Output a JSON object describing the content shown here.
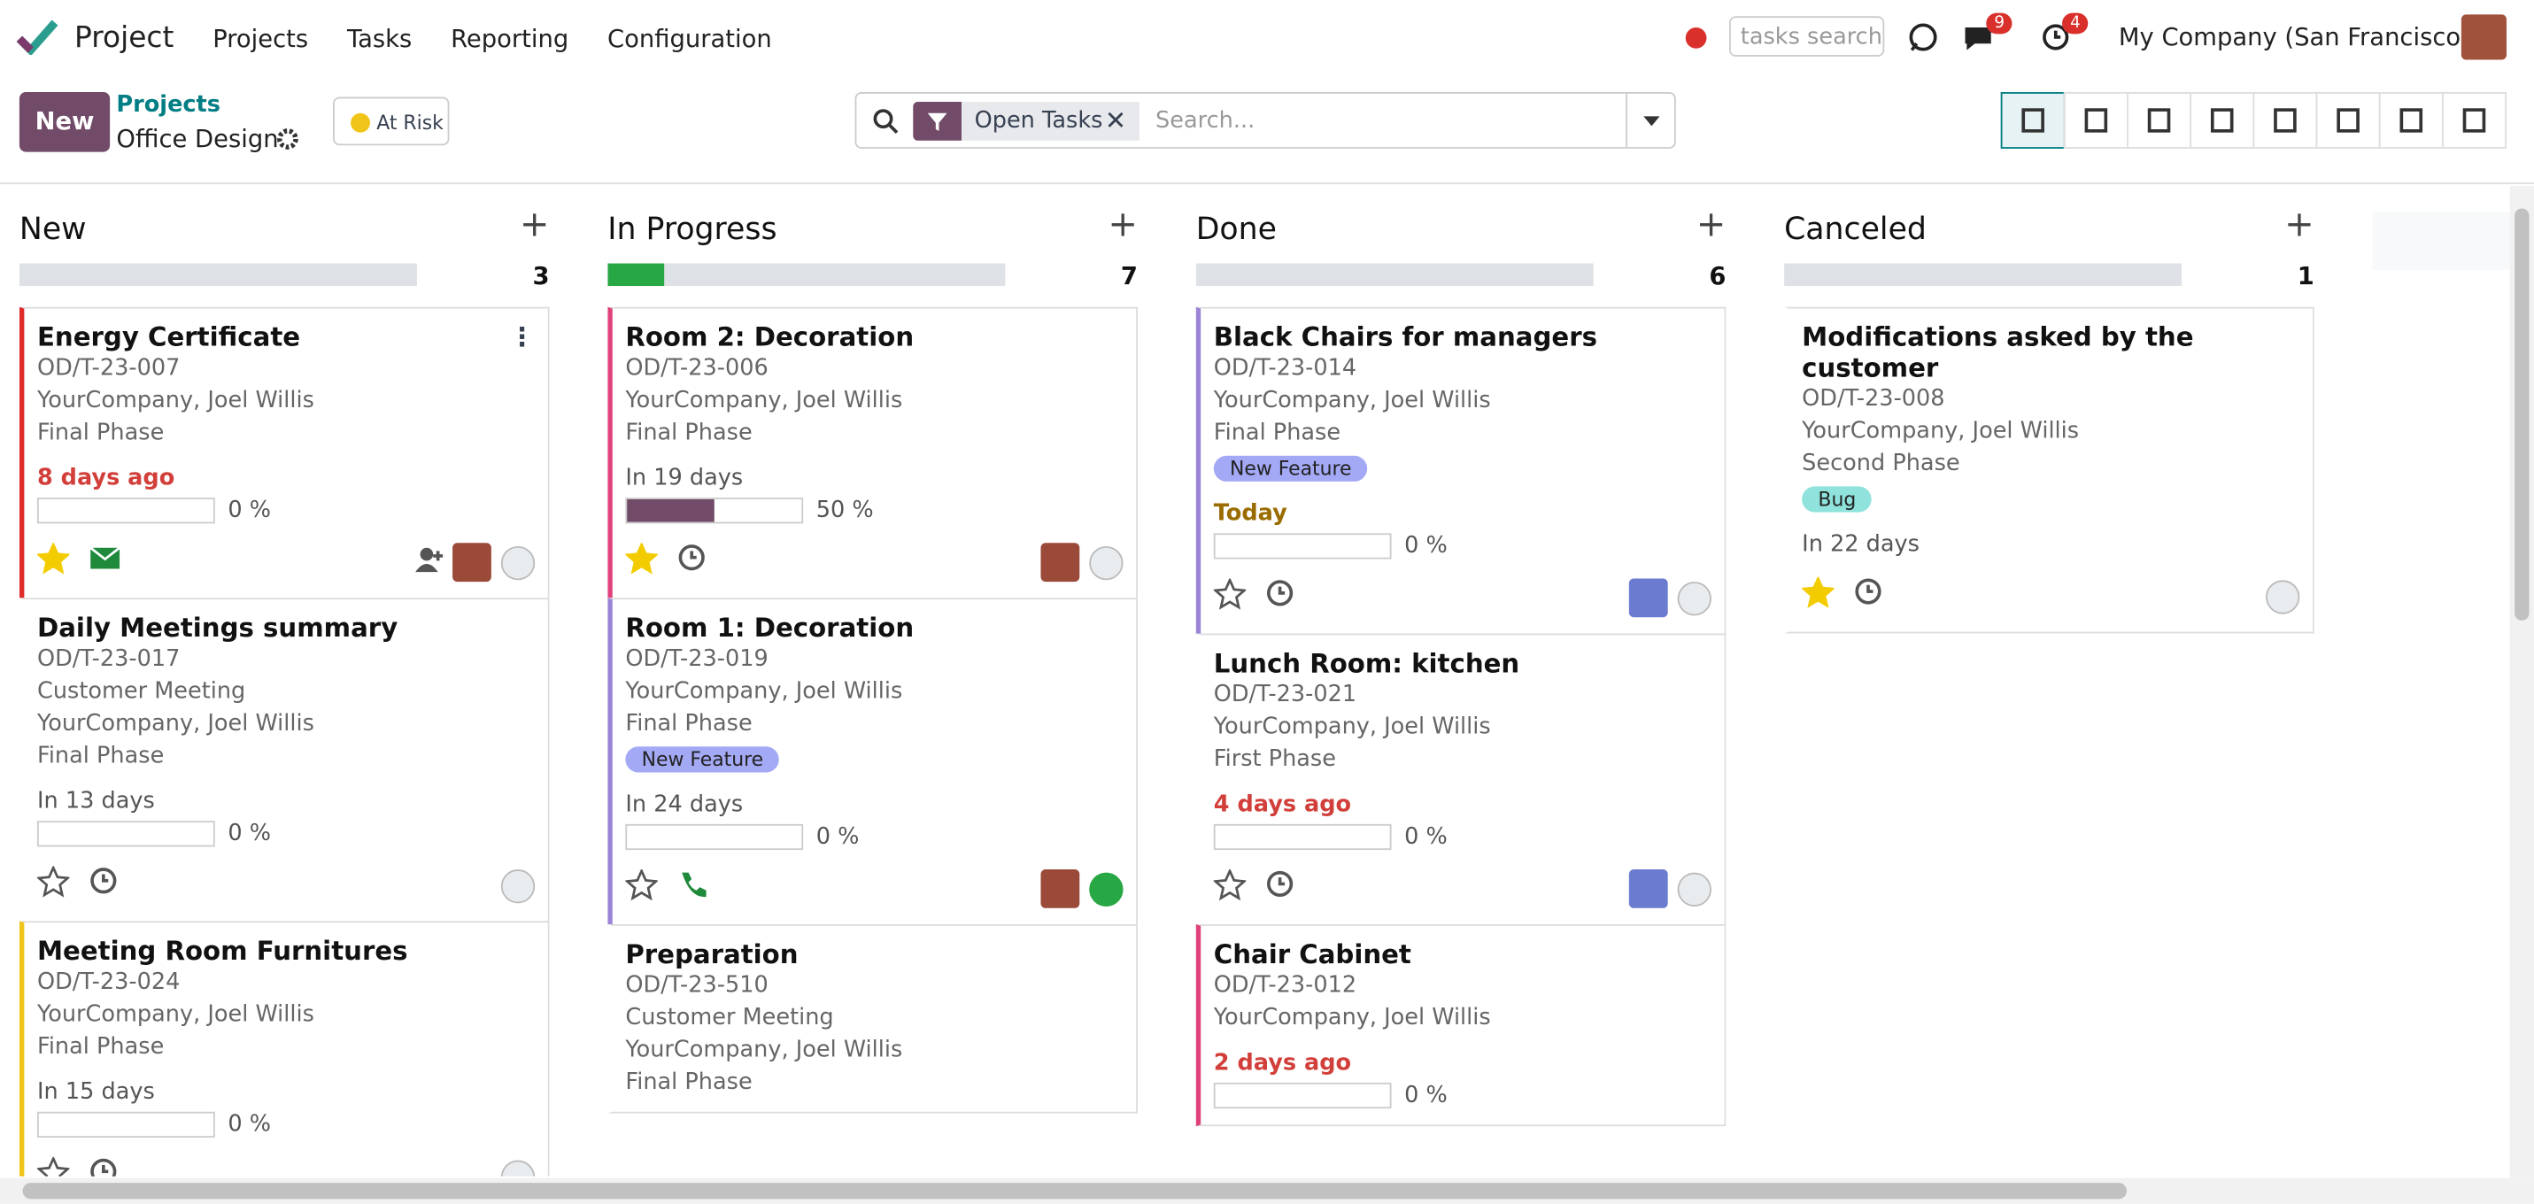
{
  "navbar": {
    "app": "Project",
    "menu": [
      "Projects",
      "Tasks",
      "Reporting",
      "Configuration"
    ],
    "search_placeholder": "tasks search",
    "messages_count": 9,
    "activities_count": 4,
    "company": "My Company (San Francisco)"
  },
  "control_panel": {
    "new_button": "New",
    "breadcrumb": "Projects",
    "project": "Office Design",
    "status": "At Risk",
    "facet": "Open Tasks",
    "search_placeholder": "Search..."
  },
  "columns": [
    {
      "name": "New",
      "count": 3,
      "cards": [
        {
          "title": "Energy Certificate",
          "ref": "OD/T-23-007",
          "lines": [
            "YourCompany, Joel Willis",
            "Final Phase"
          ],
          "deadline": "8 days ago",
          "deadline_style": "overdue",
          "progress": 0,
          "progress_label": "0 %",
          "color": "#e02b2b",
          "starred": true,
          "activity": "email",
          "followers": true,
          "avatar": "joel",
          "status": "grey"
        },
        {
          "title": "Daily Meetings summary",
          "ref": "OD/T-23-017",
          "lines": [
            "Customer Meeting",
            "YourCompany, Joel Willis",
            "Final Phase"
          ],
          "deadline": "In 13 days",
          "deadline_style": "normal",
          "progress": 0,
          "progress_label": "0 %",
          "starred": false,
          "activity": "clock",
          "status": "grey"
        },
        {
          "title": "Meeting Room Furnitures",
          "ref": "OD/T-23-024",
          "lines": [
            "YourCompany, Joel Willis",
            "Final Phase"
          ],
          "deadline": "In 15 days",
          "deadline_style": "normal",
          "progress": 0,
          "progress_label": "0 %",
          "color": "#f0c419",
          "starred": false,
          "activity": "clock",
          "status": "grey"
        }
      ]
    },
    {
      "name": "In Progress",
      "count": 7,
      "cards": [
        {
          "title": "Room 2: Decoration",
          "ref": "OD/T-23-006",
          "lines": [
            "YourCompany, Joel Willis",
            "Final Phase"
          ],
          "deadline": "In 19 days",
          "deadline_style": "normal",
          "progress": 50,
          "progress_label": "50 %",
          "color": "#e0417a",
          "starred": true,
          "activity": "clock",
          "avatar": "joel",
          "status": "grey"
        },
        {
          "title": "Room 1: Decoration",
          "ref": "OD/T-23-019",
          "lines": [
            "YourCompany, Joel Willis",
            "Final Phase"
          ],
          "tag": "New Feature",
          "tag_color": "#a3a9f5",
          "deadline": "In 24 days",
          "deadline_style": "normal",
          "progress": 0,
          "progress_label": "0 %",
          "color": "#9b84d8",
          "starred": false,
          "activity": "phone",
          "avatar": "joel",
          "status": "green"
        },
        {
          "title": "Preparation",
          "ref": "OD/T-23-510",
          "lines": [
            "Customer Meeting",
            "YourCompany, Joel Willis",
            "Final Phase"
          ],
          "starred": false
        }
      ]
    },
    {
      "name": "Done",
      "count": 6,
      "cards": [
        {
          "title": "Black Chairs for managers",
          "ref": "OD/T-23-014",
          "lines": [
            "YourCompany, Joel Willis",
            "Final Phase"
          ],
          "tag": "New Feature",
          "tag_color": "#a3a9f5",
          "deadline": "Today",
          "deadline_style": "today",
          "progress": 0,
          "progress_label": "0 %",
          "color": "#9b84d8",
          "starred": false,
          "activity": "clock",
          "avatar": "marc",
          "status": "grey"
        },
        {
          "title": "Lunch Room: kitchen",
          "ref": "OD/T-23-021",
          "lines": [
            "YourCompany, Joel Willis",
            "First Phase"
          ],
          "deadline": "4 days ago",
          "deadline_style": "overdue",
          "progress": 0,
          "progress_label": "0 %",
          "starred": false,
          "activity": "clock",
          "avatar": "marc",
          "status": "grey"
        },
        {
          "title": "Chair Cabinet",
          "ref": "OD/T-23-012",
          "lines": [
            "YourCompany, Joel Willis"
          ],
          "deadline": "2 days ago",
          "deadline_style": "overdue",
          "progress": 0,
          "progress_label": "0 %",
          "color": "#e0417a",
          "starred": false
        }
      ]
    },
    {
      "name": "Canceled",
      "count": 1,
      "cards": [
        {
          "title": "Modifications asked by the customer",
          "ref": "OD/T-23-008",
          "lines": [
            "YourCompany, Joel Willis",
            "Second Phase"
          ],
          "tag": "Bug",
          "tag_color": "#8fe3dc",
          "deadline": "In 22 days",
          "deadline_style": "normal",
          "starred": true,
          "activity": "clock",
          "status": "grey"
        }
      ]
    }
  ]
}
